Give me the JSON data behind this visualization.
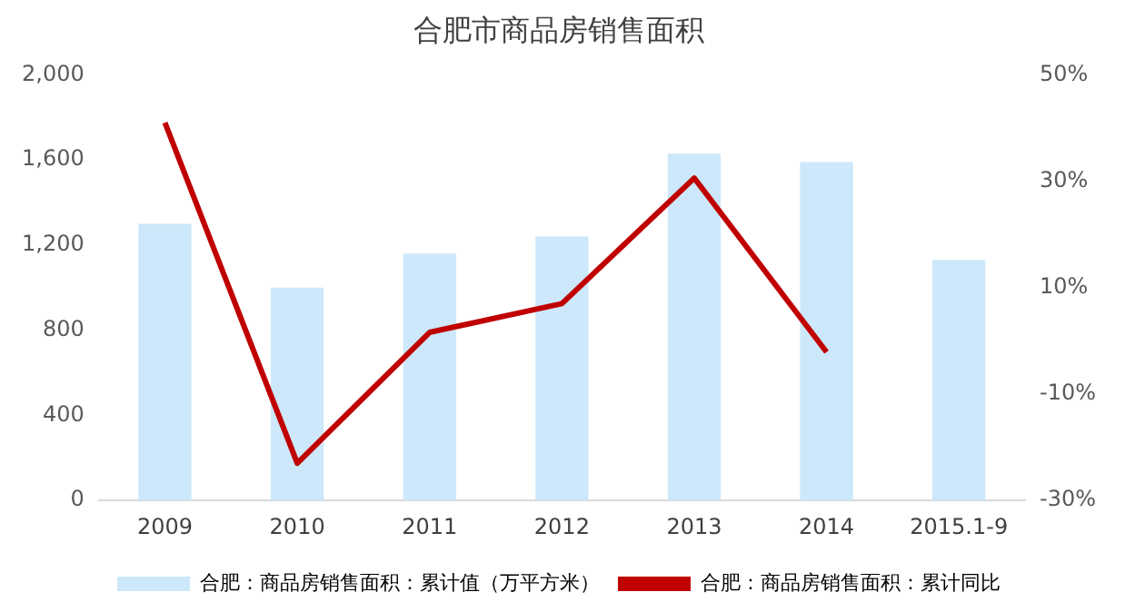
{
  "chart_data": {
    "type": "bar",
    "title": "合肥市商品房销售面积",
    "categories": [
      "2009",
      "2010",
      "2011",
      "2012",
      "2013",
      "2014",
      "2015.1-9"
    ],
    "series": [
      {
        "name": "合肥：商品房销售面积：累计值（万平方米）",
        "color": "#cce8fa",
        "values": [
          1300,
          1000,
          1160,
          1240,
          1630,
          1590,
          1130
        ]
      },
      {
        "name": "合肥：商品房销售面积：累计同比",
        "type": "line",
        "axis": "y2",
        "color": "#c00000",
        "values": [
          41,
          -23,
          1.6,
          7,
          30.6,
          -2.1,
          null
        ]
      }
    ],
    "ylim": [
      0,
      2000
    ],
    "yticks": [
      {
        "value": 0,
        "label": "0"
      },
      {
        "value": 400,
        "label": "400"
      },
      {
        "value": 800,
        "label": "800"
      },
      {
        "value": 1200,
        "label": "1,200"
      },
      {
        "value": 1600,
        "label": "1,600"
      },
      {
        "value": 2000,
        "label": "2,000"
      }
    ],
    "y2lim": [
      -30,
      50
    ],
    "y2ticks": [
      {
        "value": -30,
        "label": "-30%"
      },
      {
        "value": -10,
        "label": "-10%"
      },
      {
        "value": 10,
        "label": "10%"
      },
      {
        "value": 30,
        "label": "30%"
      },
      {
        "value": 50,
        "label": "50%"
      }
    ],
    "grid": false,
    "legend": "bottom",
    "marker": "none",
    "line_style": "solid"
  }
}
